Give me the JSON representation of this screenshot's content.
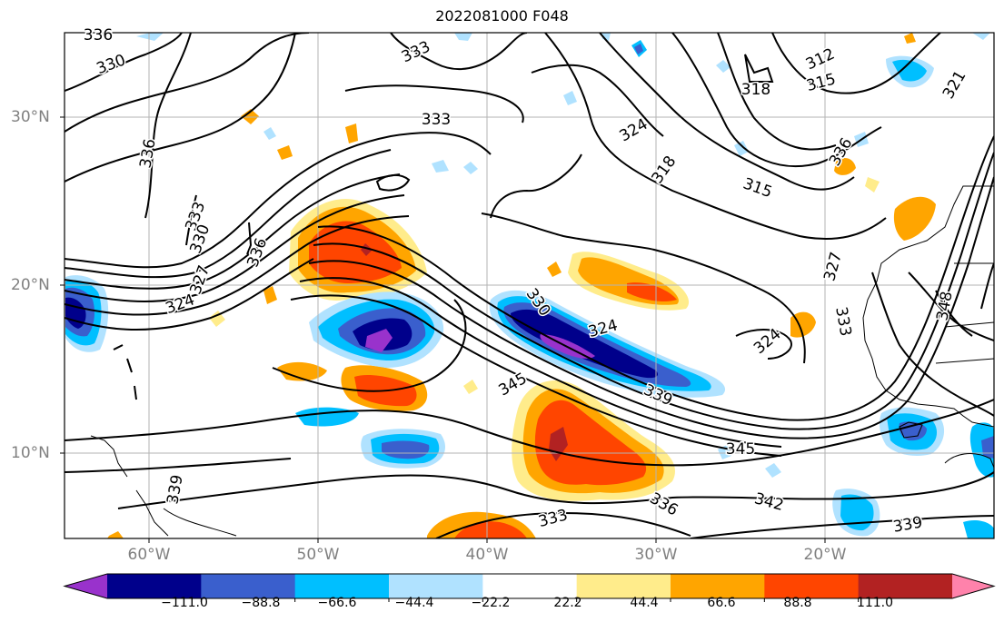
{
  "title": "2022081000 F048",
  "map": {
    "lat_labels": [
      "30°N",
      "20°N",
      "10°N"
    ],
    "lon_labels": [
      "60°W",
      "50°W",
      "40°W",
      "30°W",
      "20°W"
    ],
    "contour_labels": [
      "336",
      "330",
      "333",
      "312",
      "315",
      "318",
      "321",
      "336",
      "333",
      "324",
      "318",
      "315",
      "336",
      "333",
      "330",
      "336",
      "327",
      "324",
      "330",
      "324",
      "324",
      "327",
      "333",
      "348",
      "345",
      "339",
      "345",
      "342",
      "339",
      "336",
      "333",
      "339"
    ]
  },
  "colorbar": {
    "ticks": [
      "−111.0",
      "−88.8",
      "−66.6",
      "−44.4",
      "−22.2",
      "22.2",
      "44.4",
      "66.6",
      "88.8",
      "111.0"
    ],
    "colors": [
      "#9932cc",
      "#00008b",
      "#3a5fcd",
      "#00bfff",
      "#b0e2ff",
      "#ffffff",
      "#ffec8b",
      "#ffa500",
      "#ff4500",
      "#b22222",
      "#ff82ab"
    ]
  }
}
